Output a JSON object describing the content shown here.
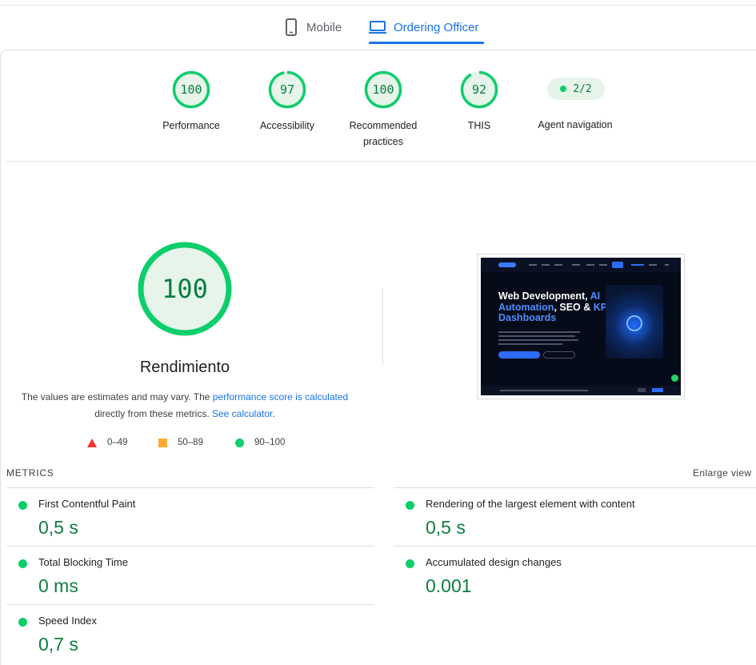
{
  "tabs": {
    "mobile": {
      "label": "Mobile",
      "icon": "smartphone-icon"
    },
    "desktop": {
      "label": "Ordering Officer",
      "icon": "monitor-icon",
      "active": true
    }
  },
  "categories": [
    {
      "score": "100",
      "label": "Performance"
    },
    {
      "score": "97",
      "label": "Accessibility"
    },
    {
      "score": "100",
      "label": "Recommended practices"
    },
    {
      "score": "92",
      "label": "THIS"
    }
  ],
  "agent": {
    "value": "2/2",
    "label": "Agent navigation"
  },
  "summary": {
    "score": "100",
    "title": "Rendimiento",
    "desc_part1": "The values are estimates and may vary. The ",
    "desc_link1": "performance score is calculated",
    "desc_part2": "directly from these metrics. ",
    "desc_link2": "See calculator",
    "desc_end": "."
  },
  "legend": {
    "fail": "0–49",
    "average": "50–89",
    "pass": "90–100"
  },
  "preview": {
    "headline_1": "Web Development, ",
    "headline_accent_1": "AI Automation",
    "headline_2": ", SEO & ",
    "headline_accent_2": "KPI Dashboards"
  },
  "metrics": {
    "title": "METRICS",
    "enlarge": "Enlarge view",
    "items": [
      {
        "name": "First Contentful Paint",
        "value": "0,5 s"
      },
      {
        "name": "Rendering of the largest element with content",
        "value": "0,5 s"
      },
      {
        "name": "Total Blocking Time",
        "value": "0 ms"
      },
      {
        "name": "Accumulated design changes",
        "value": "0.001"
      },
      {
        "name": "Speed Index",
        "value": "0,7 s"
      }
    ]
  },
  "colors": {
    "pass": "#0cce6b",
    "pass_text": "#0c7e3e",
    "pass_bg": "#e6f4ea",
    "average": "#ffaa33",
    "fail": "#ff3333",
    "accent": "#1a73e8"
  }
}
